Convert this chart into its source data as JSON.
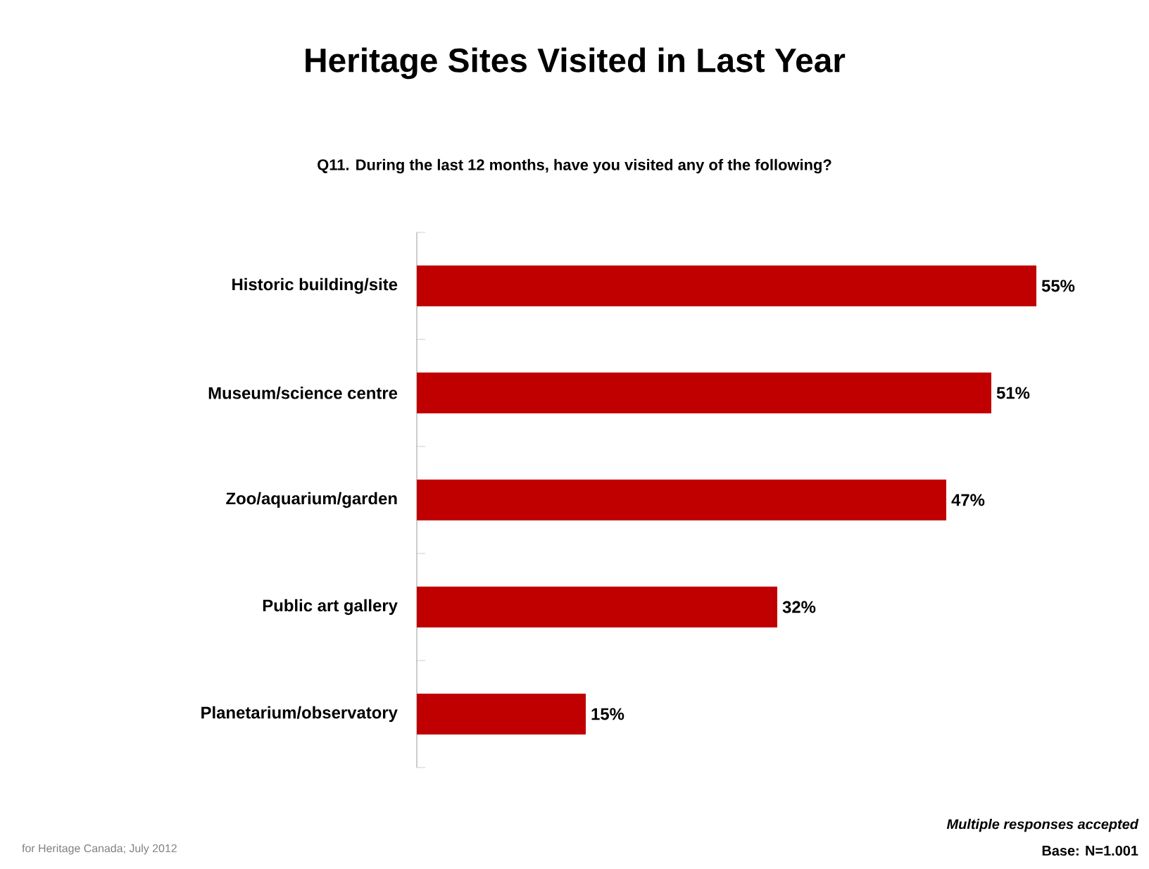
{
  "chart_data": {
    "type": "bar",
    "orientation": "horizontal",
    "title": "Heritage Sites Visited in Last Year",
    "subtitle": "Q11. During the last 12 months, have you visited any of the following?",
    "categories": [
      "Historic building/site",
      "Museum/science centre",
      "Zoo/aquarium/garden",
      "Public art gallery",
      "Planetarium/observatory"
    ],
    "values": [
      55,
      51,
      47,
      32,
      15
    ],
    "value_labels": [
      "55%",
      "51%",
      "47%",
      "32%",
      "15%"
    ],
    "color": "#c00000",
    "annotations": [
      "for Heritage Canada; July 2012",
      "Multiple responses accepted",
      "Base: N=1.001"
    ]
  }
}
